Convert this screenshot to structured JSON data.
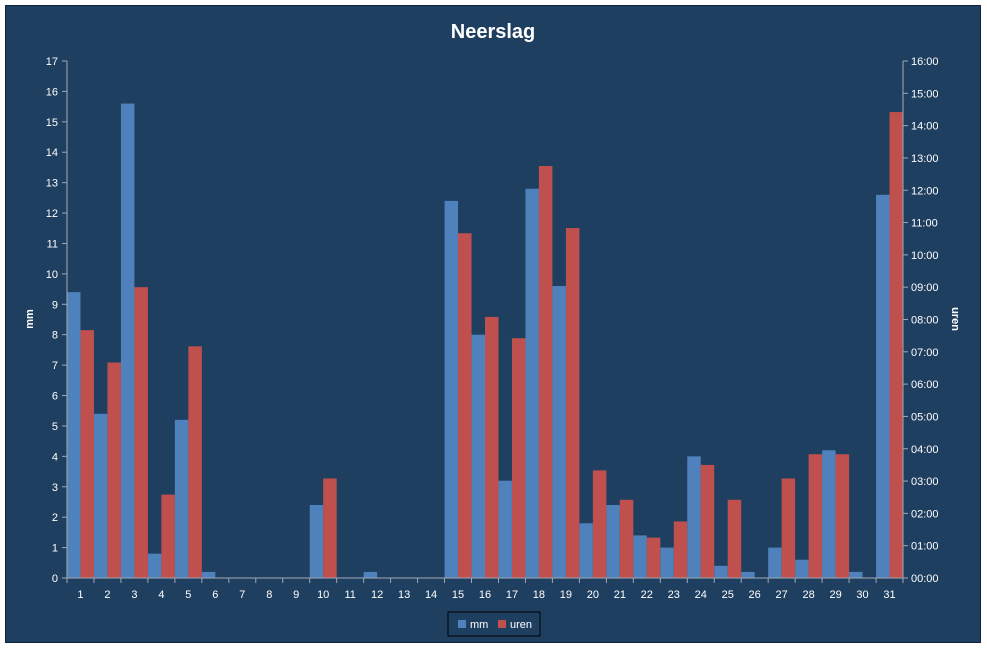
{
  "chart_data": {
    "type": "bar",
    "title": "Neerslag",
    "ylabel": "mm",
    "y2label": "uren",
    "categories": [
      "1",
      "2",
      "3",
      "4",
      "5",
      "6",
      "7",
      "8",
      "9",
      "10",
      "11",
      "12",
      "13",
      "14",
      "15",
      "16",
      "17",
      "18",
      "19",
      "20",
      "21",
      "22",
      "23",
      "24",
      "25",
      "26",
      "27",
      "28",
      "29",
      "30",
      "31"
    ],
    "ylim": [
      0,
      17
    ],
    "y2lim": [
      0,
      16
    ],
    "yticks": [
      "0",
      "1",
      "2",
      "3",
      "4",
      "5",
      "6",
      "7",
      "8",
      "9",
      "10",
      "11",
      "12",
      "13",
      "14",
      "15",
      "16",
      "17"
    ],
    "y2ticks": [
      "00:00",
      "01:00",
      "02:00",
      "03:00",
      "04:00",
      "05:00",
      "06:00",
      "07:00",
      "08:00",
      "09:00",
      "10:00",
      "11:00",
      "12:00",
      "13:00",
      "14:00",
      "15:00",
      "16:00"
    ],
    "series": [
      {
        "name": "mm",
        "axis": "left",
        "color": "#4f81bd",
        "values": [
          9.4,
          5.4,
          15.6,
          0.8,
          5.2,
          0.2,
          0,
          0,
          0,
          2.4,
          0,
          0.2,
          0,
          0,
          12.4,
          8.0,
          3.2,
          12.8,
          9.6,
          1.8,
          2.4,
          1.4,
          1.0,
          4.0,
          0.4,
          0.2,
          1.0,
          0.6,
          4.2,
          0.2,
          12.6
        ]
      },
      {
        "name": "uren",
        "axis": "right",
        "color": "#c0504d",
        "values": [
          7.67,
          6.67,
          9.0,
          2.58,
          7.17,
          0,
          0,
          0,
          0,
          3.08,
          0,
          0,
          0,
          0,
          10.67,
          8.08,
          7.42,
          12.75,
          10.83,
          3.33,
          2.42,
          1.25,
          1.75,
          3.5,
          2.42,
          0,
          3.08,
          3.83,
          3.83,
          0,
          14.42
        ]
      }
    ],
    "legend_position": "bottom",
    "grid": false
  }
}
